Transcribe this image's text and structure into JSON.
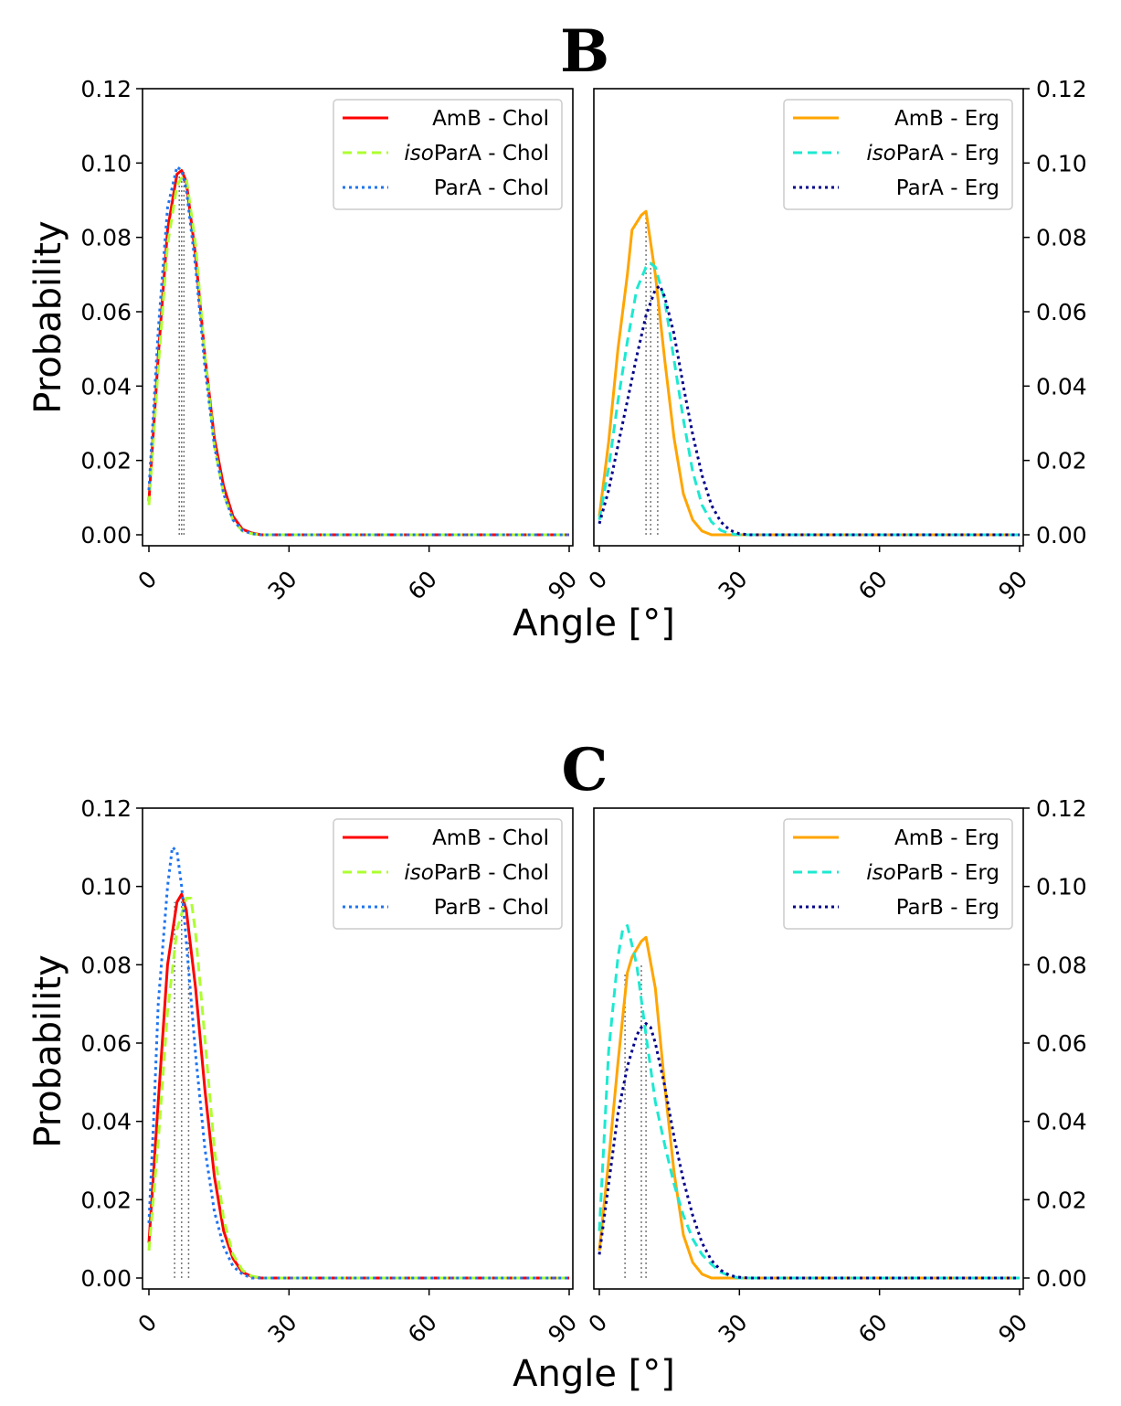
{
  "figure": {
    "ylabel": "Probability",
    "xlabel": "Angle [°]",
    "panel_letters": [
      "B",
      "C"
    ]
  },
  "chart_data": [
    {
      "type": "line",
      "panel": "B",
      "axis_side": "left",
      "title": "B",
      "xlim": [
        0,
        90
      ],
      "ylim": [
        0,
        0.12
      ],
      "x_ticks": [
        "0",
        "30",
        "60",
        "90"
      ],
      "y_ticks": [
        "0.00",
        "0.02",
        "0.04",
        "0.06",
        "0.08",
        "0.10",
        "0.12"
      ],
      "xlabel": "Angle [°]",
      "ylabel": "Probability",
      "legend": "top-right",
      "series": [
        {
          "name": "AmB - Chol",
          "prefix": "",
          "base": "AmB - Chol",
          "color": "#ff0000",
          "style": "solid",
          "x": [
            0,
            2,
            4,
            6,
            7,
            8,
            10,
            12,
            14,
            16,
            18,
            20,
            22,
            24,
            26,
            90
          ],
          "y": [
            0.009,
            0.048,
            0.082,
            0.097,
            0.098,
            0.095,
            0.075,
            0.048,
            0.026,
            0.013,
            0.005,
            0.0015,
            0.0005,
            0,
            0,
            0
          ]
        },
        {
          "name": "isoParA - Chol",
          "prefix": "iso",
          "base": "ParA - Chol",
          "color": "#adff2f",
          "style": "dashed",
          "x": [
            0,
            2,
            4,
            6,
            7,
            8,
            10,
            12,
            14,
            16,
            18,
            20,
            22,
            24,
            26,
            90
          ],
          "y": [
            0.008,
            0.045,
            0.078,
            0.094,
            0.096,
            0.096,
            0.078,
            0.048,
            0.024,
            0.011,
            0.004,
            0.001,
            0.0003,
            0,
            0,
            0
          ]
        },
        {
          "name": "ParA - Chol",
          "prefix": "",
          "base": "ParA - Chol",
          "color": "#1e74f0",
          "style": "dotted",
          "x": [
            0,
            2,
            4,
            6,
            7,
            8,
            10,
            12,
            14,
            16,
            18,
            20,
            22,
            24,
            26,
            90
          ],
          "y": [
            0.012,
            0.055,
            0.088,
            0.099,
            0.098,
            0.093,
            0.072,
            0.045,
            0.024,
            0.011,
            0.004,
            0.0012,
            0.0003,
            0,
            0,
            0
          ]
        }
      ],
      "mode_markers": [
        6.5,
        7,
        7.5
      ]
    },
    {
      "type": "line",
      "panel": "B",
      "axis_side": "right",
      "title": "",
      "xlim": [
        0,
        90
      ],
      "ylim": [
        0,
        0.12
      ],
      "x_ticks": [
        "0",
        "30",
        "60",
        "90"
      ],
      "y_ticks": [
        "0.00",
        "0.02",
        "0.04",
        "0.06",
        "0.08",
        "0.10",
        "0.12"
      ],
      "xlabel": "Angle [°]",
      "ylabel": "",
      "legend": "top-right",
      "series": [
        {
          "name": "AmB - Erg",
          "prefix": "",
          "base": "AmB - Erg",
          "color": "#ffa500",
          "style": "solid",
          "x": [
            0,
            2,
            4,
            6,
            7,
            8,
            9,
            10,
            12,
            14,
            16,
            18,
            20,
            22,
            24,
            26,
            90
          ],
          "y": [
            0.005,
            0.025,
            0.05,
            0.07,
            0.082,
            0.084,
            0.086,
            0.087,
            0.07,
            0.047,
            0.026,
            0.011,
            0.004,
            0.001,
            0,
            0,
            0
          ]
        },
        {
          "name": "isoParA - Erg",
          "prefix": "iso",
          "base": "ParA - Erg",
          "color": "#1de9d0",
          "style": "dashed",
          "x": [
            0,
            2,
            4,
            6,
            8,
            10,
            11,
            12,
            14,
            16,
            18,
            20,
            22,
            24,
            26,
            28,
            30,
            90
          ],
          "y": [
            0.004,
            0.018,
            0.036,
            0.052,
            0.066,
            0.072,
            0.073,
            0.072,
            0.063,
            0.047,
            0.031,
            0.017,
            0.008,
            0.0035,
            0.0012,
            0.0003,
            0,
            0
          ]
        },
        {
          "name": "ParA - Erg",
          "prefix": "",
          "base": "ParA - Erg",
          "color": "#00008b",
          "style": "dotted",
          "x": [
            0,
            2,
            4,
            6,
            8,
            10,
            12,
            13,
            14,
            16,
            18,
            20,
            22,
            24,
            26,
            28,
            30,
            32,
            90
          ],
          "y": [
            0.003,
            0.012,
            0.024,
            0.036,
            0.048,
            0.059,
            0.066,
            0.067,
            0.064,
            0.054,
            0.04,
            0.027,
            0.016,
            0.008,
            0.0035,
            0.0012,
            0.0003,
            0,
            0
          ]
        }
      ],
      "mode_markers": [
        10,
        11,
        12.5
      ]
    },
    {
      "type": "line",
      "panel": "C",
      "axis_side": "left",
      "title": "C",
      "xlim": [
        0,
        90
      ],
      "ylim": [
        0,
        0.12
      ],
      "x_ticks": [
        "0",
        "30",
        "60",
        "90"
      ],
      "y_ticks": [
        "0.00",
        "0.02",
        "0.04",
        "0.06",
        "0.08",
        "0.10",
        "0.12"
      ],
      "xlabel": "Angle [°]",
      "ylabel": "Probability",
      "legend": "top-right",
      "series": [
        {
          "name": "AmB - Chol",
          "prefix": "",
          "base": "AmB - Chol",
          "color": "#ff0000",
          "style": "solid",
          "x": [
            0,
            2,
            4,
            6,
            7,
            8,
            10,
            12,
            14,
            16,
            18,
            20,
            22,
            24,
            90
          ],
          "y": [
            0.009,
            0.045,
            0.08,
            0.096,
            0.098,
            0.094,
            0.074,
            0.048,
            0.026,
            0.012,
            0.005,
            0.0015,
            0.0004,
            0,
            0
          ]
        },
        {
          "name": "isoParB - Chol",
          "prefix": "iso",
          "base": "ParB - Chol",
          "color": "#adff2f",
          "style": "dashed",
          "x": [
            0,
            2,
            4,
            6,
            8,
            9,
            10,
            12,
            14,
            16,
            18,
            20,
            22,
            24,
            90
          ],
          "y": [
            0.007,
            0.035,
            0.068,
            0.089,
            0.097,
            0.097,
            0.088,
            0.061,
            0.033,
            0.015,
            0.006,
            0.002,
            0.0005,
            0,
            0
          ]
        },
        {
          "name": "ParB - Chol",
          "prefix": "",
          "base": "ParB - Chol",
          "color": "#1e74f0",
          "style": "dotted",
          "x": [
            0,
            1,
            2,
            4,
            5,
            6,
            7,
            8,
            10,
            12,
            14,
            16,
            18,
            20,
            22,
            90
          ],
          "y": [
            0.014,
            0.04,
            0.07,
            0.1,
            0.11,
            0.109,
            0.1,
            0.086,
            0.057,
            0.033,
            0.017,
            0.008,
            0.003,
            0.001,
            0,
            0
          ]
        }
      ],
      "mode_markers": [
        5.5,
        7,
        8.5
      ]
    },
    {
      "type": "line",
      "panel": "C",
      "axis_side": "right",
      "title": "",
      "xlim": [
        0,
        90
      ],
      "ylim": [
        0,
        0.12
      ],
      "x_ticks": [
        "0",
        "30",
        "60",
        "90"
      ],
      "y_ticks": [
        "0.00",
        "0.02",
        "0.04",
        "0.06",
        "0.08",
        "0.10",
        "0.12"
      ],
      "xlabel": "Angle [°]",
      "ylabel": "",
      "legend": "top-right",
      "series": [
        {
          "name": "AmB - Erg",
          "prefix": "",
          "base": "AmB - Erg",
          "color": "#ffa500",
          "style": "solid",
          "x": [
            0,
            2,
            4,
            6,
            7,
            8,
            9,
            10,
            12,
            14,
            16,
            18,
            20,
            22,
            24,
            90
          ],
          "y": [
            0.007,
            0.03,
            0.055,
            0.078,
            0.082,
            0.084,
            0.086,
            0.087,
            0.074,
            0.049,
            0.027,
            0.011,
            0.004,
            0.001,
            0,
            0
          ]
        },
        {
          "name": "isoParB - Erg",
          "prefix": "iso",
          "base": "ParB - Erg",
          "color": "#1de9d0",
          "style": "dashed",
          "x": [
            0,
            1,
            2,
            4,
            5,
            6,
            8,
            10,
            12,
            14,
            16,
            18,
            20,
            22,
            24,
            26,
            28,
            30,
            90
          ],
          "y": [
            0.012,
            0.035,
            0.058,
            0.082,
            0.089,
            0.09,
            0.08,
            0.062,
            0.045,
            0.034,
            0.024,
            0.016,
            0.01,
            0.006,
            0.0035,
            0.0015,
            0.0005,
            0,
            0
          ]
        },
        {
          "name": "ParB - Erg",
          "prefix": "",
          "base": "ParB - Erg",
          "color": "#00008b",
          "style": "dotted",
          "x": [
            0,
            2,
            4,
            6,
            8,
            9,
            10,
            11,
            12,
            14,
            16,
            18,
            20,
            22,
            24,
            26,
            28,
            30,
            32,
            90
          ],
          "y": [
            0.006,
            0.024,
            0.042,
            0.054,
            0.062,
            0.064,
            0.065,
            0.064,
            0.06,
            0.049,
            0.036,
            0.025,
            0.016,
            0.009,
            0.0045,
            0.002,
            0.0006,
            0.0002,
            0,
            0
          ]
        }
      ],
      "mode_markers": [
        5.5,
        9,
        10
      ]
    }
  ]
}
